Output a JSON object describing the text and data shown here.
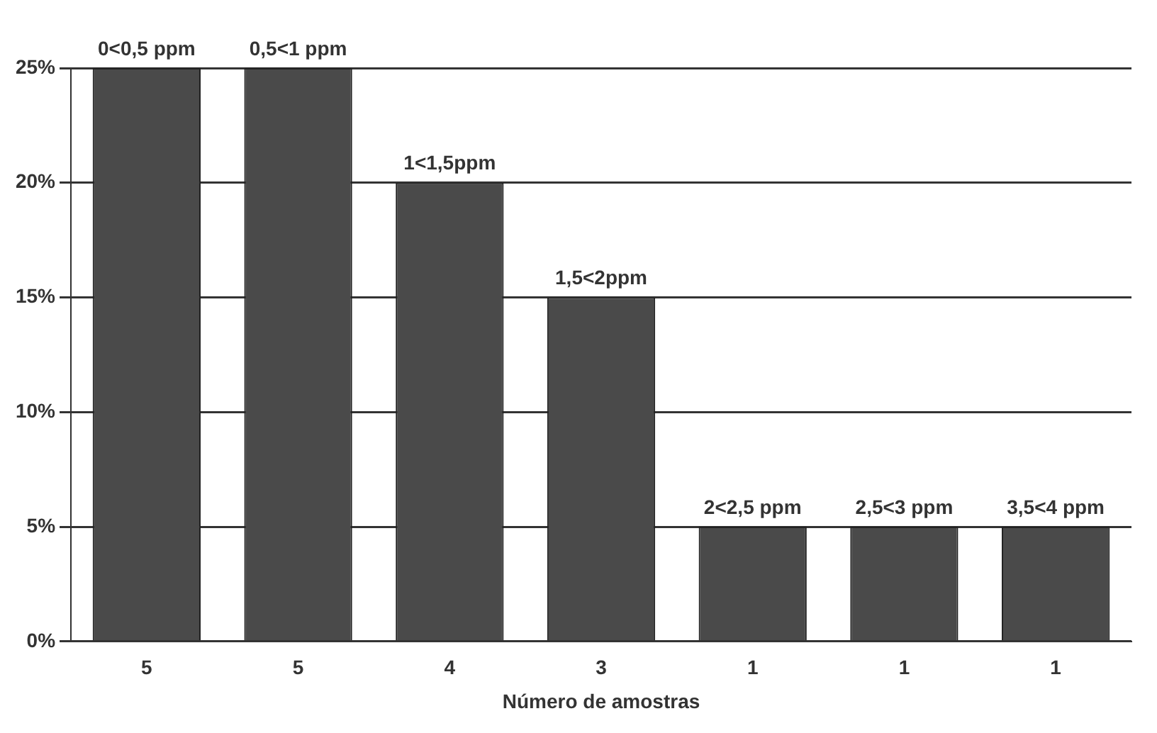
{
  "chart_data": {
    "type": "bar",
    "xlabel": "Número de amostras",
    "categories": [
      "5",
      "5",
      "4",
      "3",
      "1",
      "1",
      "1"
    ],
    "values": [
      25,
      25,
      20,
      15,
      5,
      5,
      5
    ],
    "annotations": [
      "0<0,5 ppm",
      "0,5<1 ppm",
      "1<1,5ppm",
      "1,5<2ppm",
      "2<2,5 ppm",
      "2,5<3 ppm",
      "3,5<4 ppm"
    ],
    "color": "#4a4a4a",
    "ylim": [
      0,
      25
    ],
    "yticks": [
      {
        "value": 0,
        "label": "0%"
      },
      {
        "value": 5,
        "label": "5%"
      },
      {
        "value": 10,
        "label": "10%"
      },
      {
        "value": 15,
        "label": "15%"
      },
      {
        "value": 20,
        "label": "20%"
      },
      {
        "value": 25,
        "label": "25%"
      }
    ],
    "grid": "y"
  }
}
